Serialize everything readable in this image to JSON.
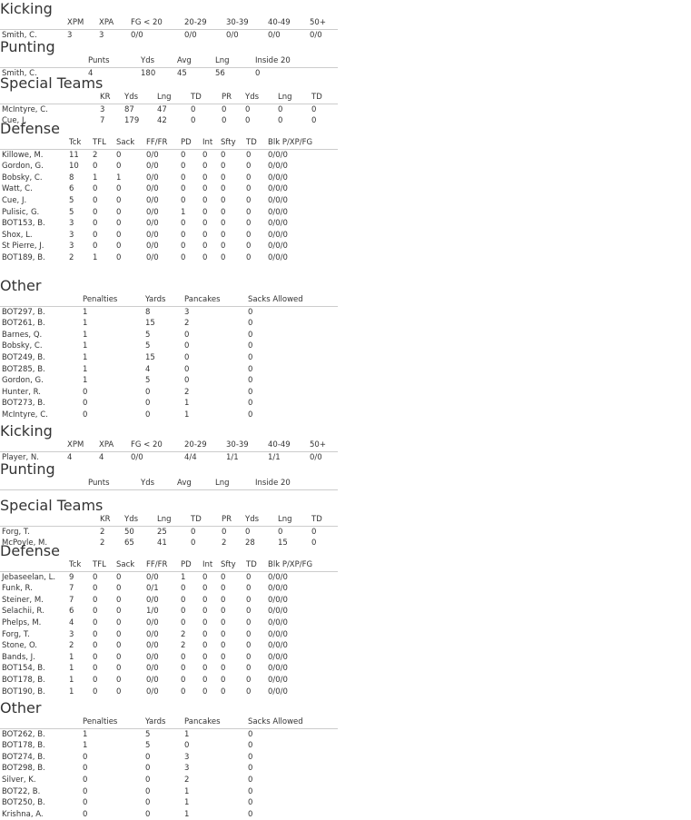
{
  "left": [
    {
      "title": "Kicking",
      "headers": [
        "XPM",
        "XPA",
        "FG < 20",
        "20-29",
        "30-39",
        "40-49",
        "50+"
      ],
      "rows": [
        [
          "Smith, C.",
          3,
          3,
          "0/0",
          "0/0",
          "0/0",
          "0/0",
          "0/0"
        ]
      ]
    },
    {
      "title": "Punting",
      "headers": [
        "Punts",
        "Yds",
        "Avg",
        "Lng",
        "Inside 20"
      ],
      "rows": [
        [
          "Smith, C.",
          4,
          180,
          45,
          56,
          0
        ]
      ]
    },
    {
      "title": "Special Teams",
      "headers": [
        "KR",
        "Yds",
        "Lng",
        "TD",
        "PR",
        "Yds",
        "Lng",
        "TD"
      ],
      "rows": [
        [
          "McIntyre, C.",
          3,
          87,
          47,
          0,
          0,
          0,
          0,
          0
        ],
        [
          "Cue, J.",
          7,
          179,
          42,
          0,
          0,
          0,
          0,
          0
        ]
      ]
    },
    {
      "title": "Defense",
      "headers": [
        "Tck",
        "TFL",
        "Sack",
        "FF/FR",
        "PD",
        "Int",
        "Sfty",
        "TD",
        "Blk P/XP/FG"
      ],
      "rows": [
        [
          "Killowe, M.",
          11,
          2,
          0,
          "0/0",
          0,
          0,
          0,
          0,
          "0/0/0"
        ],
        [
          "Gordon, G.",
          10,
          0,
          0,
          "0/0",
          0,
          0,
          0,
          0,
          "0/0/0"
        ],
        [
          "Bobsky, C.",
          8,
          1,
          1,
          "0/0",
          0,
          0,
          0,
          0,
          "0/0/0"
        ],
        [
          "Watt, C.",
          6,
          0,
          0,
          "0/0",
          0,
          0,
          0,
          0,
          "0/0/0"
        ],
        [
          "Cue, J.",
          5,
          0,
          0,
          "0/0",
          0,
          0,
          0,
          0,
          "0/0/0"
        ],
        [
          "Pulisic, G.",
          5,
          0,
          0,
          "0/0",
          1,
          0,
          0,
          0,
          "0/0/0"
        ],
        [
          "BOT153, B.",
          3,
          0,
          0,
          "0/0",
          0,
          0,
          0,
          0,
          "0/0/0"
        ],
        [
          "Shox, L.",
          3,
          0,
          0,
          "0/0",
          0,
          0,
          0,
          0,
          "0/0/0"
        ],
        [
          "St Pierre, J.",
          3,
          0,
          0,
          "0/0",
          0,
          0,
          0,
          0,
          "0/0/0"
        ],
        [
          "BOT189, B.",
          2,
          1,
          0,
          "0/0",
          0,
          0,
          0,
          0,
          "0/0/0"
        ]
      ]
    },
    {
      "title": "Other",
      "headers": [
        "Penalties",
        "Yards",
        "Pancakes",
        "Sacks Allowed"
      ],
      "rows": [
        [
          "BOT297, B.",
          1,
          8,
          3,
          0
        ],
        [
          "BOT261, B.",
          1,
          15,
          2,
          0
        ],
        [
          "Barnes, Q.",
          1,
          5,
          0,
          0
        ],
        [
          "Bobsky, C.",
          1,
          5,
          0,
          0
        ],
        [
          "BOT249, B.",
          1,
          15,
          0,
          0
        ],
        [
          "BOT285, B.",
          1,
          4,
          0,
          0
        ],
        [
          "Gordon, G.",
          1,
          5,
          0,
          0
        ],
        [
          "Hunter, R.",
          0,
          0,
          2,
          0
        ],
        [
          "BOT273, B.",
          0,
          0,
          1,
          0
        ],
        [
          "McIntyre, C.",
          0,
          0,
          1,
          0
        ]
      ]
    }
  ],
  "right": [
    {
      "title": "Kicking",
      "headers": [
        "XPM",
        "XPA",
        "FG < 20",
        "20-29",
        "30-39",
        "40-49",
        "50+"
      ],
      "rows": [
        [
          "Player, N.",
          4,
          4,
          "0/0",
          "4/4",
          "1/1",
          "1/1",
          "0/0"
        ]
      ]
    },
    {
      "title": "Punting",
      "headers": [
        "Punts",
        "Yds",
        "Avg",
        "Lng",
        "Inside 20"
      ],
      "rows": []
    },
    {
      "title": "Special Teams",
      "headers": [
        "KR",
        "Yds",
        "Lng",
        "TD",
        "PR",
        "Yds",
        "Lng",
        "TD"
      ],
      "rows": [
        [
          "Forg, T.",
          2,
          50,
          25,
          0,
          0,
          0,
          0,
          0
        ],
        [
          "McPoyle, M.",
          2,
          65,
          41,
          0,
          2,
          28,
          15,
          0
        ]
      ]
    },
    {
      "title": "Defense",
      "headers": [
        "Tck",
        "TFL",
        "Sack",
        "FF/FR",
        "PD",
        "Int",
        "Sfty",
        "TD",
        "Blk P/XP/FG"
      ],
      "rows": [
        [
          "Jebaseelan, L.",
          9,
          0,
          0,
          "0/0",
          1,
          0,
          0,
          0,
          "0/0/0"
        ],
        [
          "Funk, R.",
          7,
          0,
          0,
          "0/1",
          0,
          0,
          0,
          0,
          "0/0/0"
        ],
        [
          "Steiner, M.",
          7,
          0,
          0,
          "0/0",
          0,
          0,
          0,
          0,
          "0/0/0"
        ],
        [
          "Selachii, R.",
          6,
          0,
          0,
          "1/0",
          0,
          0,
          0,
          0,
          "0/0/0"
        ],
        [
          "Phelps, M.",
          4,
          0,
          0,
          "0/0",
          0,
          0,
          0,
          0,
          "0/0/0"
        ],
        [
          "Forg, T.",
          3,
          0,
          0,
          "0/0",
          2,
          0,
          0,
          0,
          "0/0/0"
        ],
        [
          "Stone, O.",
          2,
          0,
          0,
          "0/0",
          2,
          0,
          0,
          0,
          "0/0/0"
        ],
        [
          "Bands, J.",
          1,
          0,
          0,
          "0/0",
          0,
          0,
          0,
          0,
          "0/0/0"
        ],
        [
          "BOT154, B.",
          1,
          0,
          0,
          "0/0",
          0,
          0,
          0,
          0,
          "0/0/0"
        ],
        [
          "BOT178, B.",
          1,
          0,
          0,
          "0/0",
          0,
          0,
          0,
          0,
          "0/0/0"
        ],
        [
          "BOT190, B.",
          1,
          0,
          0,
          "0/0",
          0,
          0,
          0,
          0,
          "0/0/0"
        ]
      ]
    },
    {
      "title": "Other",
      "headers": [
        "Penalties",
        "Yards",
        "Pancakes",
        "Sacks Allowed"
      ],
      "rows": [
        [
          "BOT262, B.",
          1,
          5,
          1,
          0
        ],
        [
          "BOT178, B.",
          1,
          5,
          0,
          0
        ],
        [
          "BOT274, B.",
          0,
          0,
          3,
          0
        ],
        [
          "BOT298, B.",
          0,
          0,
          3,
          0
        ],
        [
          "Silver, K.",
          0,
          0,
          2,
          0
        ],
        [
          "BOT22, B.",
          0,
          0,
          1,
          0
        ],
        [
          "BOT250, B.",
          0,
          0,
          1,
          0
        ],
        [
          "Krishna, A.",
          0,
          0,
          1,
          0
        ]
      ]
    }
  ]
}
